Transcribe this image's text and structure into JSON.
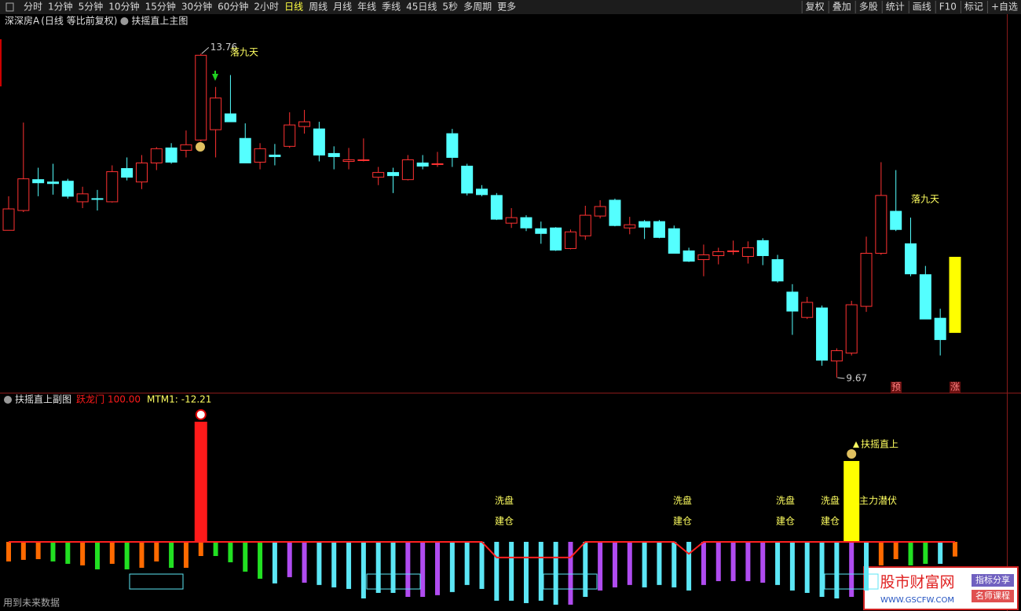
{
  "toolbar": {
    "periods": [
      "分时",
      "1分钟",
      "5分钟",
      "10分钟",
      "15分钟",
      "30分钟",
      "60分钟",
      "2小时",
      "日线",
      "周线",
      "月线",
      "年线",
      "季线",
      "45日线",
      "5秒",
      "多周期",
      "更多"
    ],
    "active": "日线",
    "tools": [
      "复权",
      "叠加",
      "多股",
      "统计",
      "画线",
      "F10",
      "标记",
      "+自选"
    ]
  },
  "chart_data": [
    {
      "type": "candlestick",
      "symbol": "深深房A",
      "subtitle": "(日线 等比前复权)",
      "title": "扶摇直上主图",
      "open": [
        11.53,
        11.78,
        12.17,
        12.14,
        12.15,
        11.89,
        11.93,
        11.89,
        12.31,
        12.14,
        12.38,
        12.57,
        12.54,
        12.67,
        12.8,
        13.0,
        12.69,
        12.39,
        12.48,
        12.59,
        12.84,
        12.81,
        12.5,
        12.4,
        12.42,
        12.2,
        12.26,
        12.17,
        12.38,
        12.37,
        12.75,
        12.34,
        12.05,
        11.97,
        11.62,
        11.69,
        11.55,
        11.56,
        11.3,
        11.46,
        11.71,
        11.91,
        11.56,
        11.64,
        11.64,
        11.55,
        11.27,
        11.16,
        11.21,
        11.26,
        11.2,
        11.4,
        11.16,
        10.75,
        10.43,
        10.55,
        9.88,
        9.98,
        10.57,
        11.24,
        11.77,
        11.36,
        10.97,
        10.42,
        11.19
      ],
      "high": [
        11.96,
        12.89,
        12.32,
        12.37,
        12.18,
        12.08,
        12.04,
        12.35,
        12.45,
        12.48,
        12.58,
        12.63,
        12.79,
        13.76,
        13.34,
        13.49,
        12.88,
        12.63,
        12.62,
        13.02,
        13.05,
        12.9,
        12.59,
        12.57,
        12.69,
        12.33,
        12.32,
        12.48,
        12.48,
        12.52,
        12.81,
        12.37,
        12.1,
        12.0,
        11.81,
        11.72,
        11.64,
        11.57,
        11.54,
        11.84,
        11.91,
        11.93,
        11.7,
        11.66,
        11.66,
        11.59,
        11.31,
        11.35,
        11.31,
        11.4,
        11.39,
        11.43,
        11.22,
        10.85,
        10.69,
        10.58,
        10.04,
        10.64,
        11.45,
        12.39,
        12.29,
        11.69,
        11.08,
        10.54,
        11.19
      ],
      "low": [
        11.53,
        11.76,
        11.96,
        11.98,
        11.93,
        11.81,
        11.78,
        11.88,
        12.16,
        12.05,
        12.29,
        12.37,
        12.45,
        12.65,
        12.45,
        12.9,
        12.38,
        12.3,
        12.35,
        12.57,
        12.75,
        12.4,
        12.3,
        12.3,
        12.4,
        12.1,
        12.0,
        12.16,
        12.3,
        12.33,
        12.33,
        11.97,
        11.96,
        11.66,
        11.56,
        11.52,
        11.36,
        11.27,
        11.29,
        11.41,
        11.68,
        11.58,
        11.48,
        11.42,
        11.43,
        11.24,
        11.13,
        10.95,
        11.1,
        11.22,
        11.11,
        11.09,
        10.87,
        10.21,
        10.41,
        9.82,
        9.67,
        9.95,
        10.5,
        11.22,
        11.52,
        10.95,
        10.41,
        9.95,
        10.24
      ],
      "close": [
        11.8,
        12.18,
        12.13,
        12.12,
        11.96,
        11.99,
        11.92,
        12.27,
        12.2,
        12.38,
        12.56,
        12.39,
        12.61,
        13.74,
        13.2,
        12.9,
        12.38,
        12.56,
        12.46,
        12.86,
        12.9,
        12.48,
        12.46,
        12.42,
        12.42,
        12.26,
        12.22,
        12.42,
        12.34,
        12.37,
        12.45,
        12.0,
        11.98,
        11.67,
        11.69,
        11.56,
        11.49,
        11.28,
        11.51,
        11.72,
        11.83,
        11.59,
        11.6,
        11.57,
        11.44,
        11.24,
        11.14,
        11.22,
        11.26,
        11.27,
        11.31,
        11.21,
        10.89,
        10.51,
        10.62,
        9.89,
        10.01,
        10.59,
        11.24,
        11.97,
        11.54,
        10.98,
        10.41,
        10.15,
        10.24
      ],
      "ylim": [
        9.48,
        14.14
      ],
      "up_color": "#ff3232",
      "down_color": "#54ffff",
      "last_color": "#ffff00",
      "annotations": [
        "落九天",
        "落九天"
      ],
      "markers": [
        "预",
        "涨"
      ]
    },
    {
      "type": "bar",
      "title": "扶摇直上副图",
      "ylim": [
        -55.6,
        120.9
      ],
      "series": [
        {
          "name": "跃龙门",
          "color": "#ff1a1a",
          "values": [
            null,
            null,
            null,
            null,
            null,
            null,
            null,
            null,
            null,
            null,
            null,
            null,
            null,
            100,
            null,
            null,
            null,
            null,
            null,
            null,
            null,
            null,
            null,
            null,
            null,
            null,
            null,
            null,
            null,
            null,
            null,
            null,
            null,
            null,
            null,
            null,
            null,
            null,
            null,
            null,
            null,
            null,
            null,
            null,
            null,
            null,
            null,
            null,
            null,
            null,
            null,
            null,
            null,
            null,
            null,
            null,
            null,
            null,
            null,
            null,
            null,
            null,
            null,
            null,
            null
          ]
        },
        {
          "name": "MTM1:",
          "colors": [
            "#ff6a00",
            "#ff6a00",
            "#ff6a00",
            "#22e022",
            "#22e022",
            "#ff6a00",
            "#22e022",
            "#ff6a00",
            "#22e022",
            "#ff6a00",
            "#ff6a00",
            "#22e022",
            "#ff6a00",
            "#ff6a00",
            "#22e022",
            "#22e022",
            "#22e022",
            "#22e022",
            "#5ce6f5",
            "#b04cf0",
            "#b04cf0",
            "#5ce6f5",
            "#5ce6f5",
            "#5ce6f5",
            "#5ce6f5",
            "#5ce6f5",
            "#5ce6f5",
            "#b04cf0",
            "#b04cf0",
            "#b04cf0",
            "#5ce6f5",
            "#5ce6f5",
            "#5ce6f5",
            "#5ce6f5",
            "#5ce6f5",
            "#5ce6f5",
            "#5ce6f5",
            "#5ce6f5",
            "#b04cf0",
            "#5ce6f5",
            "#b04cf0",
            "#b04cf0",
            "#b04cf0",
            "#5ce6f5",
            "#5ce6f5",
            "#5ce6f5",
            "#5ce6f5",
            "#b04cf0",
            "#b04cf0",
            "#b04cf0",
            "#b04cf0",
            "#b04cf0",
            "#5ce6f5",
            "#5ce6f5",
            "#5ce6f5",
            "#5ce6f5",
            "#5ce6f5",
            "#b04cf0",
            "#5ce6f5",
            "#ff6a00",
            "#ff6a00",
            "#22e022",
            "#22e022",
            "#5ce6f5",
            "#ff6a00"
          ],
          "values": [
            -16.3,
            -15.0,
            -14.4,
            -16.3,
            -18.3,
            -19.6,
            -22.9,
            -18.3,
            -22.9,
            -21.6,
            -16.3,
            -21.6,
            -21.6,
            -11.8,
            -11.8,
            -17.0,
            -24.8,
            -30.7,
            -34.6,
            -29.4,
            -34.0,
            -35.9,
            -37.9,
            -39.2,
            -47.1,
            -42.5,
            -42.5,
            -45.8,
            -45.8,
            -44.4,
            -41.8,
            -35.9,
            -39.2,
            -49.0,
            -49.0,
            -51.0,
            -49.0,
            -52.3,
            -52.3,
            -45.8,
            -40.5,
            -37.9,
            -35.9,
            -37.9,
            -35.9,
            -37.9,
            -40.5,
            -35.9,
            -32.7,
            -32.7,
            -32.7,
            -34.0,
            -35.9,
            -40.5,
            -42.5,
            -45.8,
            -47.1,
            -45.8,
            -40.5,
            -19.6,
            -14.4,
            -19.6,
            -18.3,
            -18.3,
            -12.21
          ]
        }
      ],
      "legend_values": [
        {
          "value": 100,
          "label": "100.00"
        },
        {
          "value": -12.21,
          "label": "-12.21"
        }
      ],
      "signal": {
        "color": "#ffff00",
        "values": [
          null,
          null,
          null,
          null,
          null,
          null,
          null,
          null,
          null,
          null,
          null,
          null,
          null,
          null,
          null,
          null,
          null,
          null,
          null,
          null,
          null,
          null,
          null,
          null,
          null,
          null,
          null,
          null,
          null,
          null,
          null,
          null,
          null,
          null,
          null,
          null,
          null,
          null,
          null,
          null,
          null,
          null,
          null,
          null,
          null,
          null,
          null,
          null,
          null,
          null,
          null,
          null,
          null,
          null,
          null,
          null,
          null,
          67.3,
          null,
          null,
          null,
          null,
          null,
          null,
          null
        ]
      },
      "line": {
        "color": "#ff2020",
        "values": [
          0,
          0,
          0,
          0,
          0,
          0,
          0,
          0,
          0,
          0,
          0,
          0,
          0,
          0,
          0,
          0,
          0,
          0,
          0,
          0,
          0,
          0,
          0,
          0,
          0,
          0,
          0,
          0,
          0,
          0,
          0,
          0,
          0,
          -13,
          -13,
          -13,
          -13,
          -13,
          -13,
          0,
          0,
          0,
          0,
          0,
          0,
          0,
          -10,
          0,
          0,
          0,
          0,
          0,
          0,
          0,
          0,
          0,
          0,
          0,
          0,
          0,
          0,
          0,
          0,
          0,
          0
        ]
      },
      "annotations": [
        "洗盘",
        "建仓",
        "洗盘",
        "建仓",
        "洗盘",
        "建仓",
        "洗盘",
        "建仓",
        "主力潜伏",
        "扶摇直上"
      ]
    }
  ],
  "footer": "用到未来数据",
  "watermark": {
    "site": "股市财富网",
    "url": "WWW.GSCFW.COM",
    "tags": [
      "指标分享",
      "名师课程"
    ]
  }
}
